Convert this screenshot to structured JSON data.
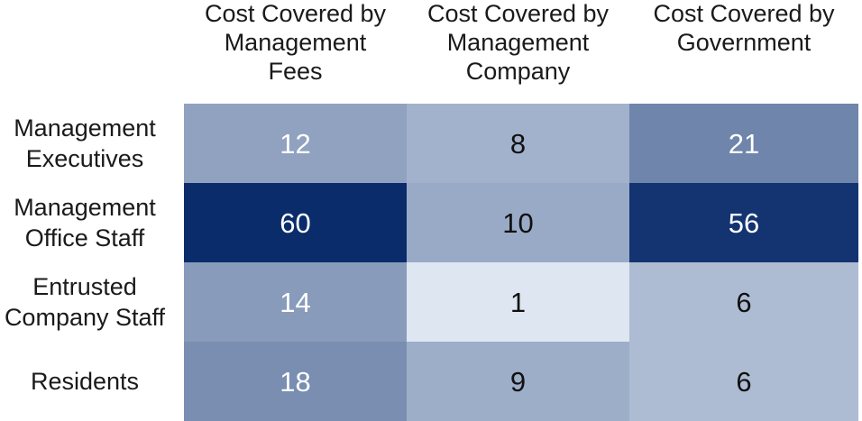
{
  "chart_data": {
    "type": "heatmap",
    "columns": [
      [
        "Cost Covered by",
        "Management",
        "Fees"
      ],
      [
        "Cost Covered by",
        "Management",
        "Company"
      ],
      [
        "Cost Covered by",
        "Government"
      ]
    ],
    "rows": [
      [
        "Management",
        "Executives"
      ],
      [
        "Management",
        "Office Staff"
      ],
      [
        "Entrusted",
        "Company Staff"
      ],
      [
        "Residents"
      ]
    ],
    "values": [
      [
        12,
        8,
        21
      ],
      [
        60,
        10,
        56
      ],
      [
        14,
        1,
        6
      ],
      [
        18,
        9,
        6
      ]
    ],
    "color_scale": {
      "min": 1,
      "max": 60,
      "low": "#dde6f1",
      "high": "#0a2c6b"
    }
  }
}
